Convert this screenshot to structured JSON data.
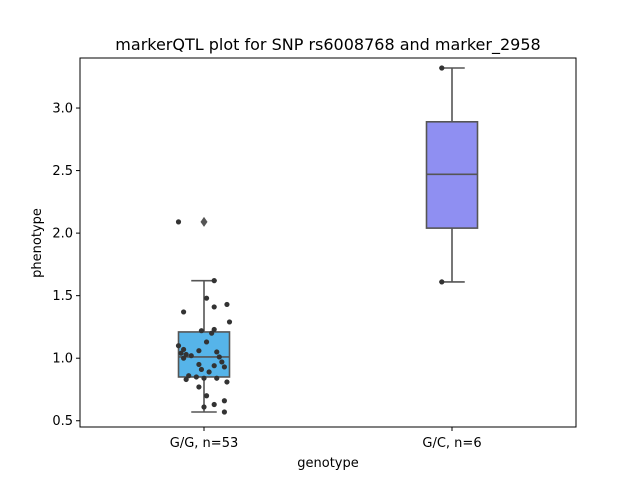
{
  "chart_data": {
    "type": "boxplot",
    "title": "markerQTL plot for SNP rs6008768 and marker_2958",
    "xlabel": "genotype",
    "ylabel": "phenotype",
    "ylim": [
      0.45,
      3.4
    ],
    "yticks": [
      0.5,
      1.0,
      1.5,
      2.0,
      2.5,
      3.0
    ],
    "ytick_labels": [
      "0.5",
      "1.0",
      "1.5",
      "2.0",
      "2.5",
      "3.0"
    ],
    "grid": false,
    "legend": "none",
    "categories": [
      "G/G, n=53",
      "G/C, n=6"
    ],
    "groups": [
      {
        "label": "G/G, n=53",
        "color": "#56b4e9",
        "whisker_low": 0.57,
        "q1": 0.85,
        "median": 1.01,
        "q3": 1.21,
        "whisker_high": 1.62,
        "outliers": [
          2.09
        ],
        "points": [
          [
            -0.1,
            2.09
          ],
          [
            0.04,
            1.62
          ],
          [
            0.01,
            1.48
          ],
          [
            0.09,
            1.43
          ],
          [
            0.04,
            1.41
          ],
          [
            -0.08,
            1.37
          ],
          [
            0.1,
            1.29
          ],
          [
            0.04,
            1.23
          ],
          [
            -0.01,
            1.22
          ],
          [
            0.03,
            1.2
          ],
          [
            0.01,
            1.13
          ],
          [
            -0.1,
            1.1
          ],
          [
            -0.08,
            1.07
          ],
          [
            -0.02,
            1.06
          ],
          [
            0.05,
            1.05
          ],
          [
            -0.09,
            1.04
          ],
          [
            -0.07,
            1.03
          ],
          [
            -0.05,
            1.02
          ],
          [
            0.06,
            1.01
          ],
          [
            -0.08,
            1.0
          ],
          [
            0.07,
            0.97
          ],
          [
            -0.02,
            0.95
          ],
          [
            0.04,
            0.94
          ],
          [
            0.08,
            0.93
          ],
          [
            -0.01,
            0.91
          ],
          [
            0.02,
            0.89
          ],
          [
            -0.06,
            0.86
          ],
          [
            -0.03,
            0.85
          ],
          [
            0.0,
            0.84
          ],
          [
            0.05,
            0.84
          ],
          [
            -0.07,
            0.83
          ],
          [
            0.09,
            0.81
          ],
          [
            -0.02,
            0.77
          ],
          [
            0.01,
            0.7
          ],
          [
            0.08,
            0.66
          ],
          [
            0.04,
            0.63
          ],
          [
            0.0,
            0.61
          ],
          [
            0.08,
            0.57
          ]
        ]
      },
      {
        "label": "G/C, n=6",
        "color": "#8f8ff2",
        "whisker_low": 1.61,
        "q1": 2.04,
        "median": 2.47,
        "q3": 2.89,
        "whisker_high": 3.32,
        "outliers": [],
        "points": [
          [
            -0.04,
            3.32
          ],
          [
            -0.04,
            1.61
          ]
        ]
      }
    ]
  }
}
